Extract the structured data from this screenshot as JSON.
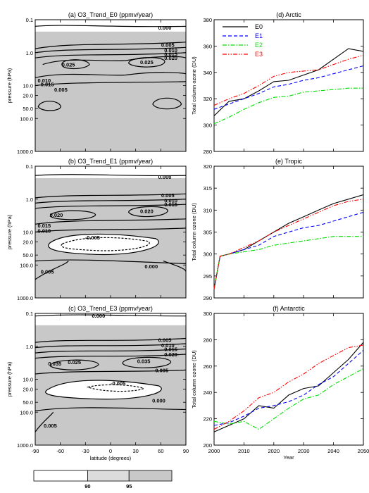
{
  "colors": {
    "shade_90": "#dcdcdc",
    "shade_95": "#c8c8c8",
    "E0": "#000000",
    "E1": "#0000ff",
    "E2": "#00dd00",
    "E3": "#ff0000"
  },
  "chart_data": [
    {
      "type": "contour",
      "title": "(a) O3_Trend_E0 (ppmv/year)",
      "ylabel": "pressure (hPa)",
      "xlabel": "",
      "xlim": [
        -90,
        90
      ],
      "ylim": [
        1000,
        0.1
      ],
      "log_y": true,
      "xticks": [
        "-90",
        "-60",
        "-30",
        "0",
        "30",
        "60",
        "90"
      ],
      "yticks": [
        "0.1",
        "1.0",
        "10.0",
        "20.0",
        "50.0",
        "100.0",
        "1000.0"
      ],
      "contour_labels": [
        "0.000",
        "0.005",
        "0.010",
        "0.015",
        "0.020",
        "0.025",
        "0.025",
        "0.010",
        "0.015",
        "0.005"
      ]
    },
    {
      "type": "contour",
      "title": "(b) O3_Trend_E1 (ppmv/year)",
      "ylabel": "pressure (hPa)",
      "xlabel": "",
      "xlim": [
        -90,
        90
      ],
      "ylim": [
        1000,
        0.1
      ],
      "log_y": true,
      "xticks": [
        "-90",
        "-60",
        "-30",
        "0",
        "30",
        "60",
        "90"
      ],
      "yticks": [
        "0.1",
        "1.0",
        "10.0",
        "20.0",
        "50.0",
        "100.0",
        "1000.0"
      ],
      "contour_labels": [
        "0.000",
        "0.005",
        "0.010",
        "0.015",
        "0.020",
        "0.020",
        "0.015",
        "0.010",
        "-0.005",
        "0.000",
        "0.005"
      ]
    },
    {
      "type": "contour",
      "title": "(c) O3_Trend_E3 (ppmv/year)",
      "ylabel": "pressure (hPa)",
      "xlabel": "latitude (degrees)",
      "xlim": [
        -90,
        90
      ],
      "ylim": [
        1000,
        0.1
      ],
      "log_y": true,
      "xticks": [
        "-90",
        "-60",
        "-30",
        "0",
        "30",
        "60",
        "90"
      ],
      "yticks": [
        "0.1",
        "1.0",
        "10.0",
        "20.0",
        "50.0",
        "100.0",
        "1000.0"
      ],
      "contour_labels": [
        "0.000",
        "0.005",
        "0.010",
        "0.015",
        "0.020",
        "0.035",
        "0.035",
        "0.025",
        "0.005",
        "-0.005",
        "0.000",
        "0.005"
      ]
    },
    {
      "type": "line",
      "title": "(d) Arctic",
      "ylabel": "Total column ozone (DU)",
      "xlabel": "",
      "xlim": [
        2000,
        2050
      ],
      "ylim": [
        280,
        380
      ],
      "yticks": [
        280,
        300,
        320,
        340,
        360,
        380
      ],
      "xticks": [
        2000,
        2010,
        2020,
        2030,
        2040,
        2050
      ],
      "legend": "top-left",
      "x": [
        2000,
        2005,
        2010,
        2015,
        2020,
        2025,
        2030,
        2035,
        2040,
        2045,
        2050
      ],
      "series": [
        {
          "name": "E0",
          "values": [
            307,
            318,
            320,
            326,
            333,
            334,
            338,
            342,
            350,
            358,
            356
          ]
        },
        {
          "name": "E1",
          "values": [
            312,
            316,
            320,
            324,
            329,
            331,
            334,
            336,
            339,
            342,
            345
          ]
        },
        {
          "name": "E2",
          "values": [
            301,
            306,
            312,
            317,
            321,
            322,
            325,
            326,
            327,
            328,
            328
          ]
        },
        {
          "name": "E3",
          "values": [
            315,
            320,
            324,
            330,
            337,
            340,
            341,
            342,
            346,
            350,
            353
          ]
        }
      ]
    },
    {
      "type": "line",
      "title": "(e) Tropic",
      "ylabel": "Total column ozone (DU)",
      "xlabel": "",
      "xlim": [
        2000,
        2050
      ],
      "ylim": [
        290,
        320
      ],
      "yticks": [
        290,
        295,
        300,
        305,
        310,
        315,
        320
      ],
      "xticks": [
        2000,
        2010,
        2020,
        2030,
        2040,
        2050
      ],
      "x": [
        2000,
        2002,
        2005,
        2010,
        2015,
        2020,
        2025,
        2030,
        2035,
        2040,
        2045,
        2050
      ],
      "series": [
        {
          "name": "E0",
          "values": [
            292,
            299.5,
            300,
            301,
            303,
            305,
            307,
            308.5,
            310,
            311.5,
            312.5,
            313.5
          ]
        },
        {
          "name": "E1",
          "values": [
            292,
            299.5,
            300,
            301,
            302,
            304,
            305,
            306,
            306.5,
            307.5,
            308.5,
            309.5
          ]
        },
        {
          "name": "E2",
          "values": [
            292,
            299.5,
            300,
            300.5,
            301,
            302,
            302.5,
            303,
            303.5,
            304,
            304,
            304
          ]
        },
        {
          "name": "E3",
          "values": [
            292,
            299.5,
            300,
            301.5,
            303,
            305,
            306.5,
            308,
            309.5,
            311,
            312,
            312.5
          ]
        }
      ]
    },
    {
      "type": "line",
      "title": "(f) Antarctic",
      "ylabel": "Total column ozone (DU)",
      "xlabel": "Year",
      "xlim": [
        2000,
        2050
      ],
      "ylim": [
        200,
        300
      ],
      "yticks": [
        200,
        220,
        240,
        260,
        280,
        300
      ],
      "xticks": [
        2000,
        2010,
        2020,
        2030,
        2040,
        2050
      ],
      "xticklabels": [
        "2000",
        "2010",
        "2020",
        "2030",
        "2040",
        "2050"
      ],
      "x": [
        2000,
        2005,
        2010,
        2015,
        2020,
        2025,
        2030,
        2035,
        2040,
        2045,
        2050
      ],
      "series": [
        {
          "name": "E0",
          "values": [
            210,
            215,
            220,
            230,
            228,
            238,
            243,
            245,
            255,
            265,
            278
          ]
        },
        {
          "name": "E1",
          "values": [
            215,
            217,
            222,
            228,
            230,
            233,
            238,
            246,
            252,
            262,
            272
          ]
        },
        {
          "name": "E2",
          "values": [
            218,
            216,
            218,
            212,
            220,
            228,
            235,
            238,
            246,
            252,
            258
          ]
        },
        {
          "name": "E3",
          "values": [
            212,
            218,
            226,
            236,
            240,
            248,
            254,
            262,
            268,
            274,
            276
          ]
        }
      ]
    }
  ],
  "colorbar": {
    "labels": [
      "90",
      "95"
    ]
  }
}
